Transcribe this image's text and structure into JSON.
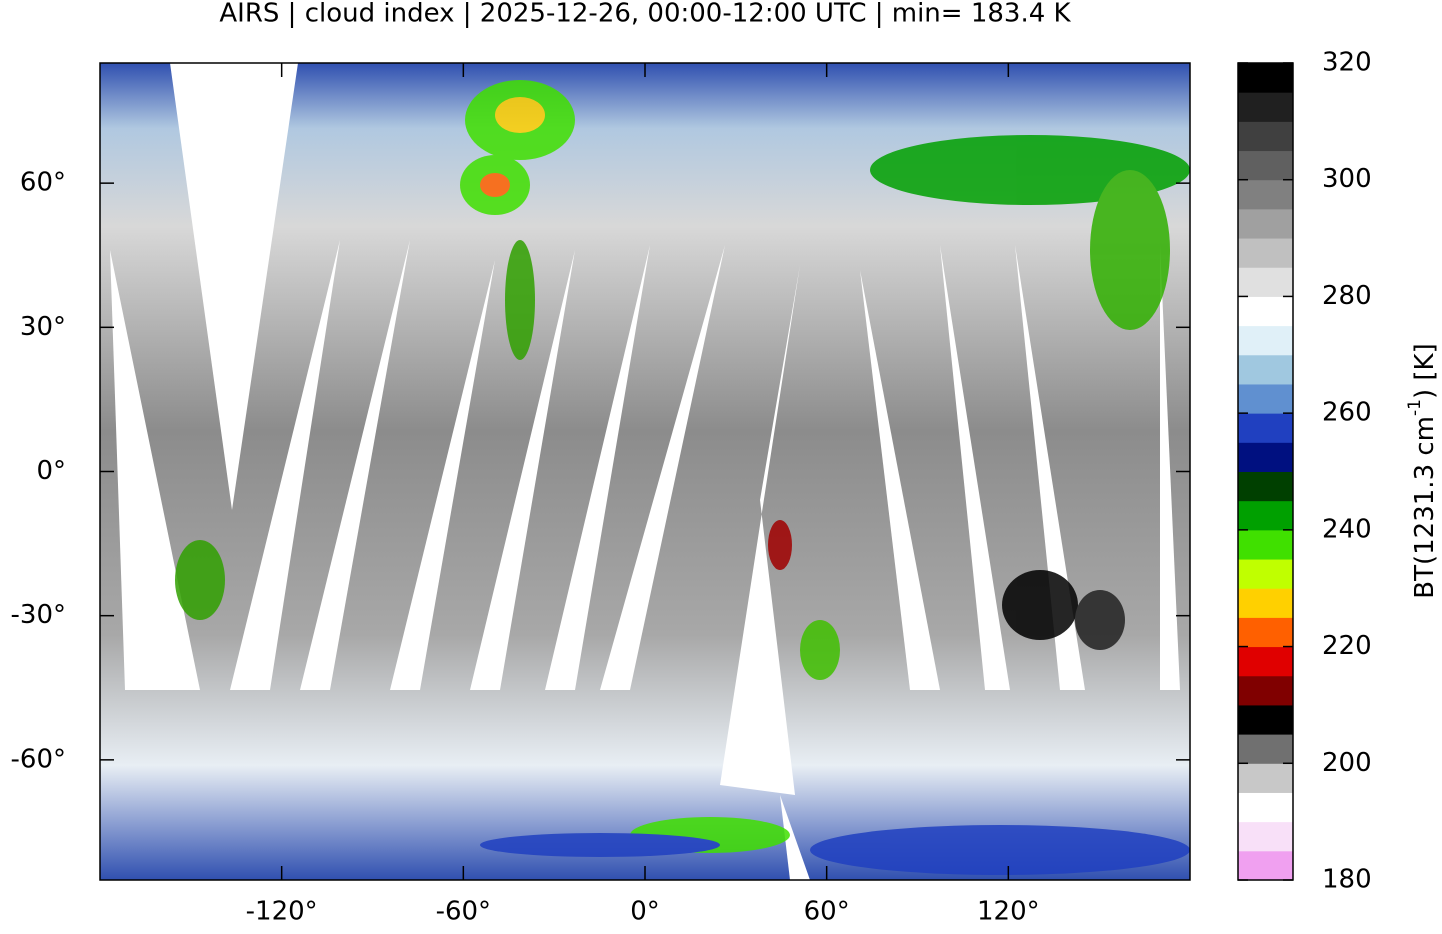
{
  "title": "AIRS | cloud index | 2025-12-26, 00:00-12:00 UTC | min= 183.4 K",
  "map": {
    "xlim": [
      -180,
      180
    ],
    "ylim": [
      -85,
      85
    ],
    "xticks": [
      {
        "value": -120,
        "label": "-120°"
      },
      {
        "value": -60,
        "label": "-60°"
      },
      {
        "value": 0,
        "label": "0°"
      },
      {
        "value": 60,
        "label": "60°"
      },
      {
        "value": 120,
        "label": "120°"
      }
    ],
    "yticks": [
      {
        "value": 60,
        "label": "60°"
      },
      {
        "value": 30,
        "label": "30°"
      },
      {
        "value": 0,
        "label": "0°"
      },
      {
        "value": -30,
        "label": "-30°"
      },
      {
        "value": -60,
        "label": "-60°"
      }
    ]
  },
  "colorbar": {
    "lim": [
      180,
      320
    ],
    "ticks": [
      180,
      200,
      220,
      240,
      260,
      280,
      300,
      320
    ],
    "label_main": "BT(1231.3 cm",
    "label_sup": "-1",
    "label_end": ") [K]",
    "colors": [
      "#f0a0f0",
      "#f8e0f8",
      "#ffffff",
      "#c8c8c8",
      "#707070",
      "#000000",
      "#800000",
      "#e00000",
      "#ff6000",
      "#ffd000",
      "#c0ff00",
      "#40e000",
      "#00a000",
      "#004000",
      "#001080",
      "#2040c0",
      "#6090d0",
      "#a0c8e0",
      "#e0f0f8",
      "#ffffff",
      "#e0e0e0",
      "#c0c0c0",
      "#a0a0a0",
      "#808080",
      "#606060",
      "#404040",
      "#202020",
      "#000000"
    ]
  }
}
